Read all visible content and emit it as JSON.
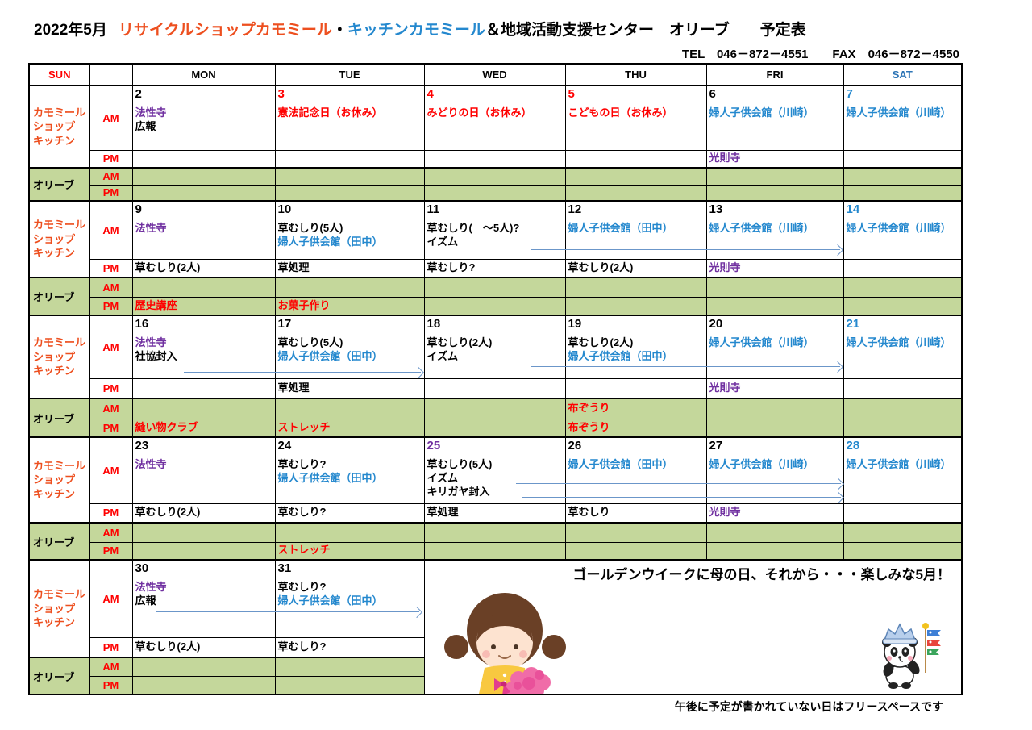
{
  "palette": {
    "black": "#000000",
    "red": "#FF0000",
    "blue": "#2488CE",
    "purple": "#7030A0",
    "orange": "#ED4F1F",
    "satblue": "#2E75B6",
    "green": "#C4D79B",
    "arrow": "#6B96C9"
  },
  "title": {
    "month": "2022年5月",
    "recycle": "リサイクルショップカモミール",
    "dot": "・",
    "kitchen": "キッチンカモミール",
    "rest": "＆地域活動支援センター　オリーブ　　予定表"
  },
  "contact": {
    "tel": "TEL　046－872－4551",
    "fax": "FAX　046－872－4550"
  },
  "text_colors": {
    "recycle": "orange",
    "kitchen": "blue",
    "chamomile_label": "orange",
    "ampm": "red"
  },
  "labels": {
    "chamomile": "カモミール\nショップ\nキッチン",
    "olive": "オリーブ",
    "am": "AM",
    "pm": "PM"
  },
  "day_headers": [
    {
      "label": "SUN",
      "c": "red"
    },
    {
      "label": "",
      "c": "black"
    },
    {
      "label": "MON",
      "c": "black"
    },
    {
      "label": "TUE",
      "c": "black"
    },
    {
      "label": "WED",
      "c": "black"
    },
    {
      "label": "THU",
      "c": "black"
    },
    {
      "label": "FRI",
      "c": "black"
    },
    {
      "label": "SAT",
      "c": "satblue"
    }
  ],
  "weeks": [
    {
      "days": [
        {
          "date": "2",
          "dcolor": "black",
          "am": [
            {
              "t": "法性寺",
              "c": "purple"
            },
            {
              "t": "広報",
              "c": "black"
            }
          ],
          "pm": [],
          "olive_am": [],
          "olive_pm": [],
          "olive_am_x": false,
          "olive_pm_x": false
        },
        {
          "date": "3",
          "dcolor": "red",
          "am": [
            {
              "t": "憲法記念日（お休み）",
              "c": "red"
            }
          ],
          "pm": [],
          "olive_am": [],
          "olive_pm": [],
          "olive_am_x": true,
          "olive_pm_x": true
        },
        {
          "date": "4",
          "dcolor": "red",
          "am": [
            {
              "t": "みどりの日（お休み）",
              "c": "red"
            }
          ],
          "pm": [],
          "olive_am": [],
          "olive_pm": [],
          "olive_am_x": true,
          "olive_pm_x": true
        },
        {
          "date": "5",
          "dcolor": "red",
          "am": [
            {
              "t": "こどもの日（お休み）",
              "c": "red"
            }
          ],
          "pm": [],
          "olive_am": [],
          "olive_pm": [],
          "olive_am_x": true,
          "olive_pm_x": true
        },
        {
          "date": "6",
          "dcolor": "black",
          "am": [
            {
              "t": "婦人子供会館（川崎）",
              "c": "blue"
            }
          ],
          "pm": [
            {
              "t": "光則寺",
              "c": "purple"
            }
          ],
          "olive_am": [],
          "olive_pm": [],
          "olive_am_x": false,
          "olive_pm_x": false
        },
        {
          "date": "7",
          "dcolor": "blue",
          "am": [
            {
              "t": "婦人子供会館（川崎）",
              "c": "blue"
            }
          ],
          "pm": [],
          "olive_am": [],
          "olive_pm": [],
          "olive_am_x": true,
          "olive_pm_x": true
        }
      ]
    },
    {
      "days": [
        {
          "date": "9",
          "dcolor": "black",
          "am": [
            {
              "t": "法性寺",
              "c": "purple"
            }
          ],
          "pm": [
            {
              "t": "草むしり(2人)",
              "c": "black"
            }
          ],
          "olive_am": [],
          "olive_pm": [
            {
              "t": "歴史講座",
              "c": "red"
            }
          ],
          "olive_am_x": false,
          "olive_pm_x": false
        },
        {
          "date": "10",
          "dcolor": "black",
          "am": [
            {
              "t": "草むしり(5人)",
              "c": "black"
            },
            {
              "t": "婦人子供会館（田中）",
              "c": "blue"
            }
          ],
          "pm": [
            {
              "t": "草処理",
              "c": "black"
            }
          ],
          "olive_am": [],
          "olive_pm": [
            {
              "t": "お菓子作り",
              "c": "red"
            }
          ],
          "olive_am_x": false,
          "olive_pm_x": false
        },
        {
          "date": "11",
          "dcolor": "black",
          "am": [
            {
              "t": "草むしり(　～5人)?",
              "c": "black"
            },
            {
              "t": "イズム",
              "c": "black"
            }
          ],
          "pm": [
            {
              "t": "草むしり?",
              "c": "black"
            }
          ],
          "olive_am": [],
          "olive_pm": [],
          "olive_am_x": false,
          "olive_pm_x": true
        },
        {
          "date": "12",
          "dcolor": "black",
          "am": [
            {
              "t": "婦人子供会館（田中）",
              "c": "blue"
            }
          ],
          "pm": [
            {
              "t": "草むしり(2人)",
              "c": "black"
            }
          ],
          "olive_am": [],
          "olive_pm": [],
          "olive_am_x": false,
          "olive_pm_x": false
        },
        {
          "date": "13",
          "dcolor": "black",
          "am": [
            {
              "t": "婦人子供会館（川崎）",
              "c": "blue"
            }
          ],
          "pm": [
            {
              "t": "光則寺",
              "c": "purple"
            }
          ],
          "olive_am": [],
          "olive_pm": [],
          "olive_am_x": false,
          "olive_pm_x": false
        },
        {
          "date": "14",
          "dcolor": "blue",
          "am": [
            {
              "t": "婦人子供会館（川崎）",
              "c": "blue"
            }
          ],
          "pm": [],
          "olive_am": [],
          "olive_pm": [],
          "olive_am_x": true,
          "olive_pm_x": true
        }
      ]
    },
    {
      "days": [
        {
          "date": "16",
          "dcolor": "black",
          "am": [
            {
              "t": "法性寺",
              "c": "purple"
            },
            {
              "t": "社協封入",
              "c": "black"
            }
          ],
          "pm": [],
          "olive_am": [],
          "olive_pm": [
            {
              "t": "縫い物クラブ",
              "c": "red"
            }
          ],
          "olive_am_x": false,
          "olive_pm_x": false
        },
        {
          "date": "17",
          "dcolor": "black",
          "am": [
            {
              "t": "草むしり(5人)",
              "c": "black"
            },
            {
              "t": "婦人子供会館（田中）",
              "c": "blue"
            }
          ],
          "pm": [
            {
              "t": "草処理",
              "c": "black"
            }
          ],
          "olive_am": [],
          "olive_pm": [
            {
              "t": "ストレッチ",
              "c": "red"
            }
          ],
          "olive_am_x": false,
          "olive_pm_x": false
        },
        {
          "date": "18",
          "dcolor": "black",
          "am": [
            {
              "t": "草むしり(2人)",
              "c": "black"
            },
            {
              "t": "イズム",
              "c": "black"
            }
          ],
          "pm": [],
          "olive_am": [],
          "olive_pm": [],
          "olive_am_x": false,
          "olive_pm_x": true
        },
        {
          "date": "19",
          "dcolor": "black",
          "am": [
            {
              "t": "草むしり(2人)",
              "c": "black"
            },
            {
              "t": "婦人子供会館（田中）",
              "c": "blue"
            }
          ],
          "pm": [],
          "olive_am": [
            {
              "t": "布ぞうり",
              "c": "red"
            }
          ],
          "olive_pm": [
            {
              "t": "布ぞうり",
              "c": "red"
            }
          ],
          "olive_am_x": false,
          "olive_pm_x": false
        },
        {
          "date": "20",
          "dcolor": "black",
          "am": [
            {
              "t": "婦人子供会館（川崎）",
              "c": "blue"
            }
          ],
          "pm": [
            {
              "t": "光則寺",
              "c": "purple"
            }
          ],
          "olive_am": [],
          "olive_pm": [],
          "olive_am_x": false,
          "olive_pm_x": false
        },
        {
          "date": "21",
          "dcolor": "blue",
          "am": [
            {
              "t": "婦人子供会館（川崎）",
              "c": "blue"
            }
          ],
          "pm": [],
          "olive_am": [],
          "olive_pm": [],
          "olive_am_x": true,
          "olive_pm_x": true
        }
      ]
    },
    {
      "days": [
        {
          "date": "23",
          "dcolor": "black",
          "am": [
            {
              "t": "法性寺",
              "c": "purple"
            }
          ],
          "pm": [
            {
              "t": "草むしり(2人)",
              "c": "black"
            }
          ],
          "olive_am": [],
          "olive_pm": [],
          "olive_am_x": false,
          "olive_pm_x": false
        },
        {
          "date": "24",
          "dcolor": "black",
          "am": [
            {
              "t": "草むしり?",
              "c": "black"
            },
            {
              "t": "婦人子供会館（田中）",
              "c": "blue"
            }
          ],
          "pm": [
            {
              "t": "草むしり?",
              "c": "black"
            }
          ],
          "olive_am": [],
          "olive_pm": [
            {
              "t": "ストレッチ",
              "c": "red"
            }
          ],
          "olive_am_x": false,
          "olive_pm_x": false
        },
        {
          "date": "25",
          "dcolor": "purple",
          "am": [
            {
              "t": "草むしり(5人)",
              "c": "black"
            },
            {
              "t": "イズム",
              "c": "black"
            },
            {
              "t": "キリガヤ封入",
              "c": "black"
            }
          ],
          "pm": [
            {
              "t": "草処理",
              "c": "black"
            }
          ],
          "olive_am": [],
          "olive_pm": [],
          "olive_am_x": false,
          "olive_pm_x": true
        },
        {
          "date": "26",
          "dcolor": "black",
          "am": [
            {
              "t": "婦人子供会館（田中）",
              "c": "blue"
            }
          ],
          "pm": [
            {
              "t": "草むしり",
              "c": "black"
            }
          ],
          "olive_am": [],
          "olive_pm": [],
          "olive_am_x": false,
          "olive_pm_x": false
        },
        {
          "date": "27",
          "dcolor": "black",
          "am": [
            {
              "t": "婦人子供会館（川崎）",
              "c": "blue"
            }
          ],
          "pm": [
            {
              "t": "光則寺",
              "c": "purple"
            }
          ],
          "olive_am": [],
          "olive_pm": [],
          "olive_am_x": false,
          "olive_pm_x": false
        },
        {
          "date": "28",
          "dcolor": "blue",
          "am": [
            {
              "t": "婦人子供会館（川崎）",
              "c": "blue"
            }
          ],
          "pm": [],
          "olive_am": [],
          "olive_pm": [],
          "olive_am_x": true,
          "olive_pm_x": true
        }
      ]
    },
    {
      "days": [
        {
          "date": "30",
          "dcolor": "black",
          "am": [
            {
              "t": "法性寺",
              "c": "purple"
            },
            {
              "t": "広報",
              "c": "black"
            }
          ],
          "pm": [
            {
              "t": "草むしり(2人)",
              "c": "black"
            }
          ],
          "olive_am": [],
          "olive_pm": [],
          "olive_am_x": false,
          "olive_pm_x": false
        },
        {
          "date": "31",
          "dcolor": "black",
          "am": [
            {
              "t": "草むしり?",
              "c": "black"
            },
            {
              "t": "婦人子供会館（田中）",
              "c": "blue"
            }
          ],
          "pm": [
            {
              "t": "草むしり?",
              "c": "black"
            }
          ],
          "olive_am": [],
          "olive_pm": [],
          "olive_am_x": false,
          "olive_pm_x": false
        }
      ]
    }
  ],
  "arrows": [
    {
      "week": 2,
      "row": "AM",
      "from": "11",
      "to": "13"
    },
    {
      "week": 3,
      "row": "AM",
      "from": "16",
      "to": "17"
    },
    {
      "week": 3,
      "row": "AM",
      "from": "18",
      "to": "20"
    },
    {
      "week": 4,
      "row": "AM",
      "from": "25",
      "to": "27"
    },
    {
      "week": 4,
      "row": "AM",
      "from": "25",
      "to": "27"
    },
    {
      "week": 5,
      "row": "AM",
      "from": "30",
      "to": "31"
    }
  ],
  "notes": {
    "banner": "ゴールデンウイークに母の日、それから・・・楽しみな5月！",
    "footer": "午後に予定が書かれていない日はフリースペースです"
  }
}
